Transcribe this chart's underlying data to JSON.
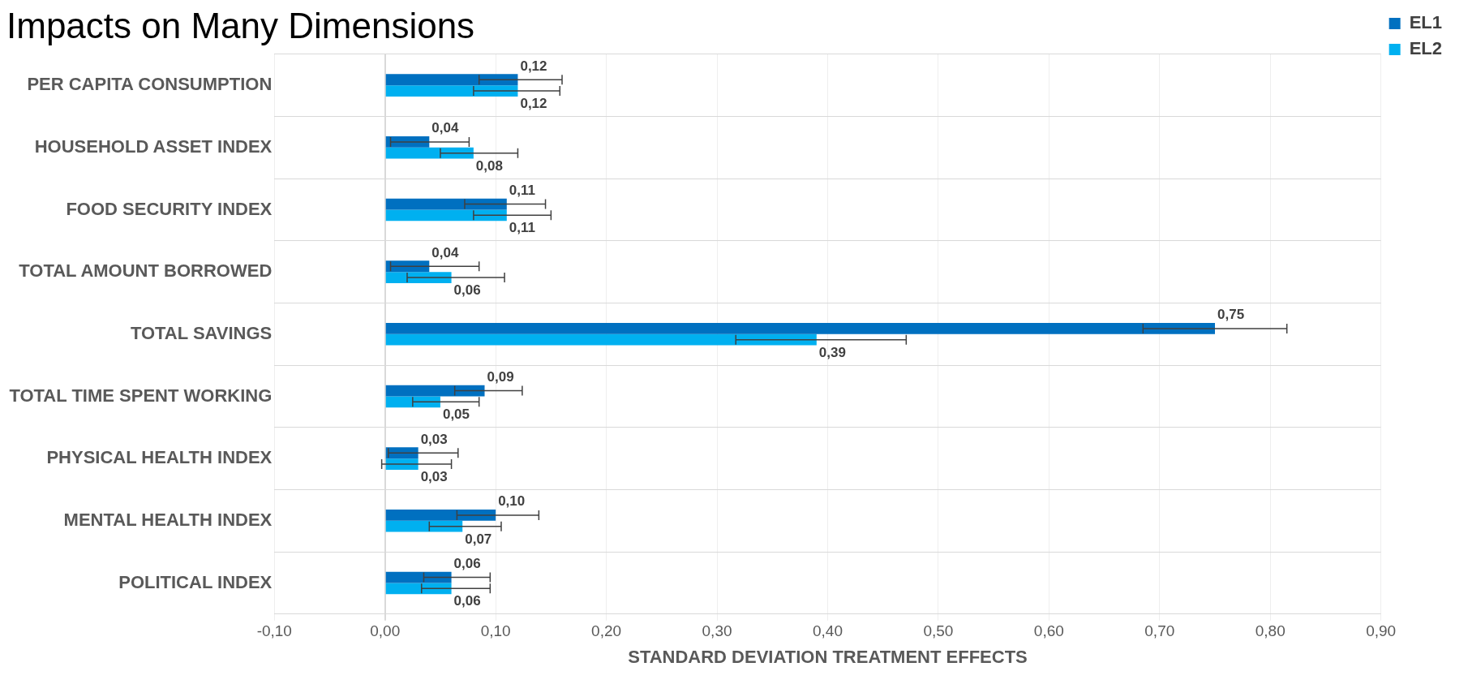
{
  "chart_data": {
    "type": "bar",
    "orientation": "horizontal",
    "title": "Impacts on Many Dimensions",
    "xlabel": "STANDARD DEVIATION TREATMENT EFFECTS",
    "categories": [
      "PER CAPITA CONSUMPTION",
      "HOUSEHOLD ASSET INDEX",
      "FOOD SECURITY INDEX",
      "TOTAL AMOUNT BORROWED",
      "TOTAL SAVINGS",
      "TOTAL TIME SPENT WORKING",
      "PHYSICAL HEALTH INDEX",
      "MENTAL HEALTH INDEX",
      "POLITICAL INDEX"
    ],
    "series": [
      {
        "name": "EL1",
        "color": "#0070c0",
        "values": [
          0.12,
          0.04,
          0.11,
          0.04,
          0.75,
          0.09,
          0.03,
          0.1,
          0.06
        ],
        "value_labels": [
          "0,12",
          "0,04",
          "0,11",
          "0,04",
          "0,75",
          "0,09",
          "0,03",
          "0,10",
          "0,06"
        ],
        "errors": [
          [
            0.085,
            0.16
          ],
          [
            0.005,
            0.076
          ],
          [
            0.072,
            0.145
          ],
          [
            0.005,
            0.085
          ],
          [
            0.685,
            0.815
          ],
          [
            0.063,
            0.124
          ],
          [
            0.003,
            0.066
          ],
          [
            0.065,
            0.139
          ],
          [
            0.035,
            0.095
          ]
        ]
      },
      {
        "name": "EL2",
        "color": "#00b0f0",
        "values": [
          0.12,
          0.08,
          0.11,
          0.06,
          0.39,
          0.05,
          0.03,
          0.07,
          0.06
        ],
        "value_labels": [
          "0,12",
          "0,08",
          "0,11",
          "0,06",
          "0,39",
          "0,05",
          "0,03",
          "0,07",
          "0,06"
        ],
        "errors": [
          [
            0.08,
            0.158
          ],
          [
            0.05,
            0.12
          ],
          [
            0.08,
            0.15
          ],
          [
            0.02,
            0.108
          ],
          [
            0.317,
            0.471
          ],
          [
            0.025,
            0.085
          ],
          [
            -0.003,
            0.06
          ],
          [
            0.04,
            0.105
          ],
          [
            0.033,
            0.095
          ]
        ]
      }
    ],
    "xlim": [
      -0.1,
      0.9
    ],
    "xticks": [
      {
        "value": -0.1,
        "label": "-0,10"
      },
      {
        "value": 0,
        "label": "0,00"
      },
      {
        "value": 0.1,
        "label": "0,10"
      },
      {
        "value": 0.2,
        "label": "0,20"
      },
      {
        "value": 0.3,
        "label": "0,30"
      },
      {
        "value": 0.4,
        "label": "0,40"
      },
      {
        "value": 0.5,
        "label": "0,50"
      },
      {
        "value": 0.6,
        "label": "0,60"
      },
      {
        "value": 0.7,
        "label": "0,70"
      },
      {
        "value": 0.8,
        "label": "0,80"
      },
      {
        "value": 0.9,
        "label": "0,90"
      }
    ],
    "grid": true,
    "legend": "top right"
  }
}
